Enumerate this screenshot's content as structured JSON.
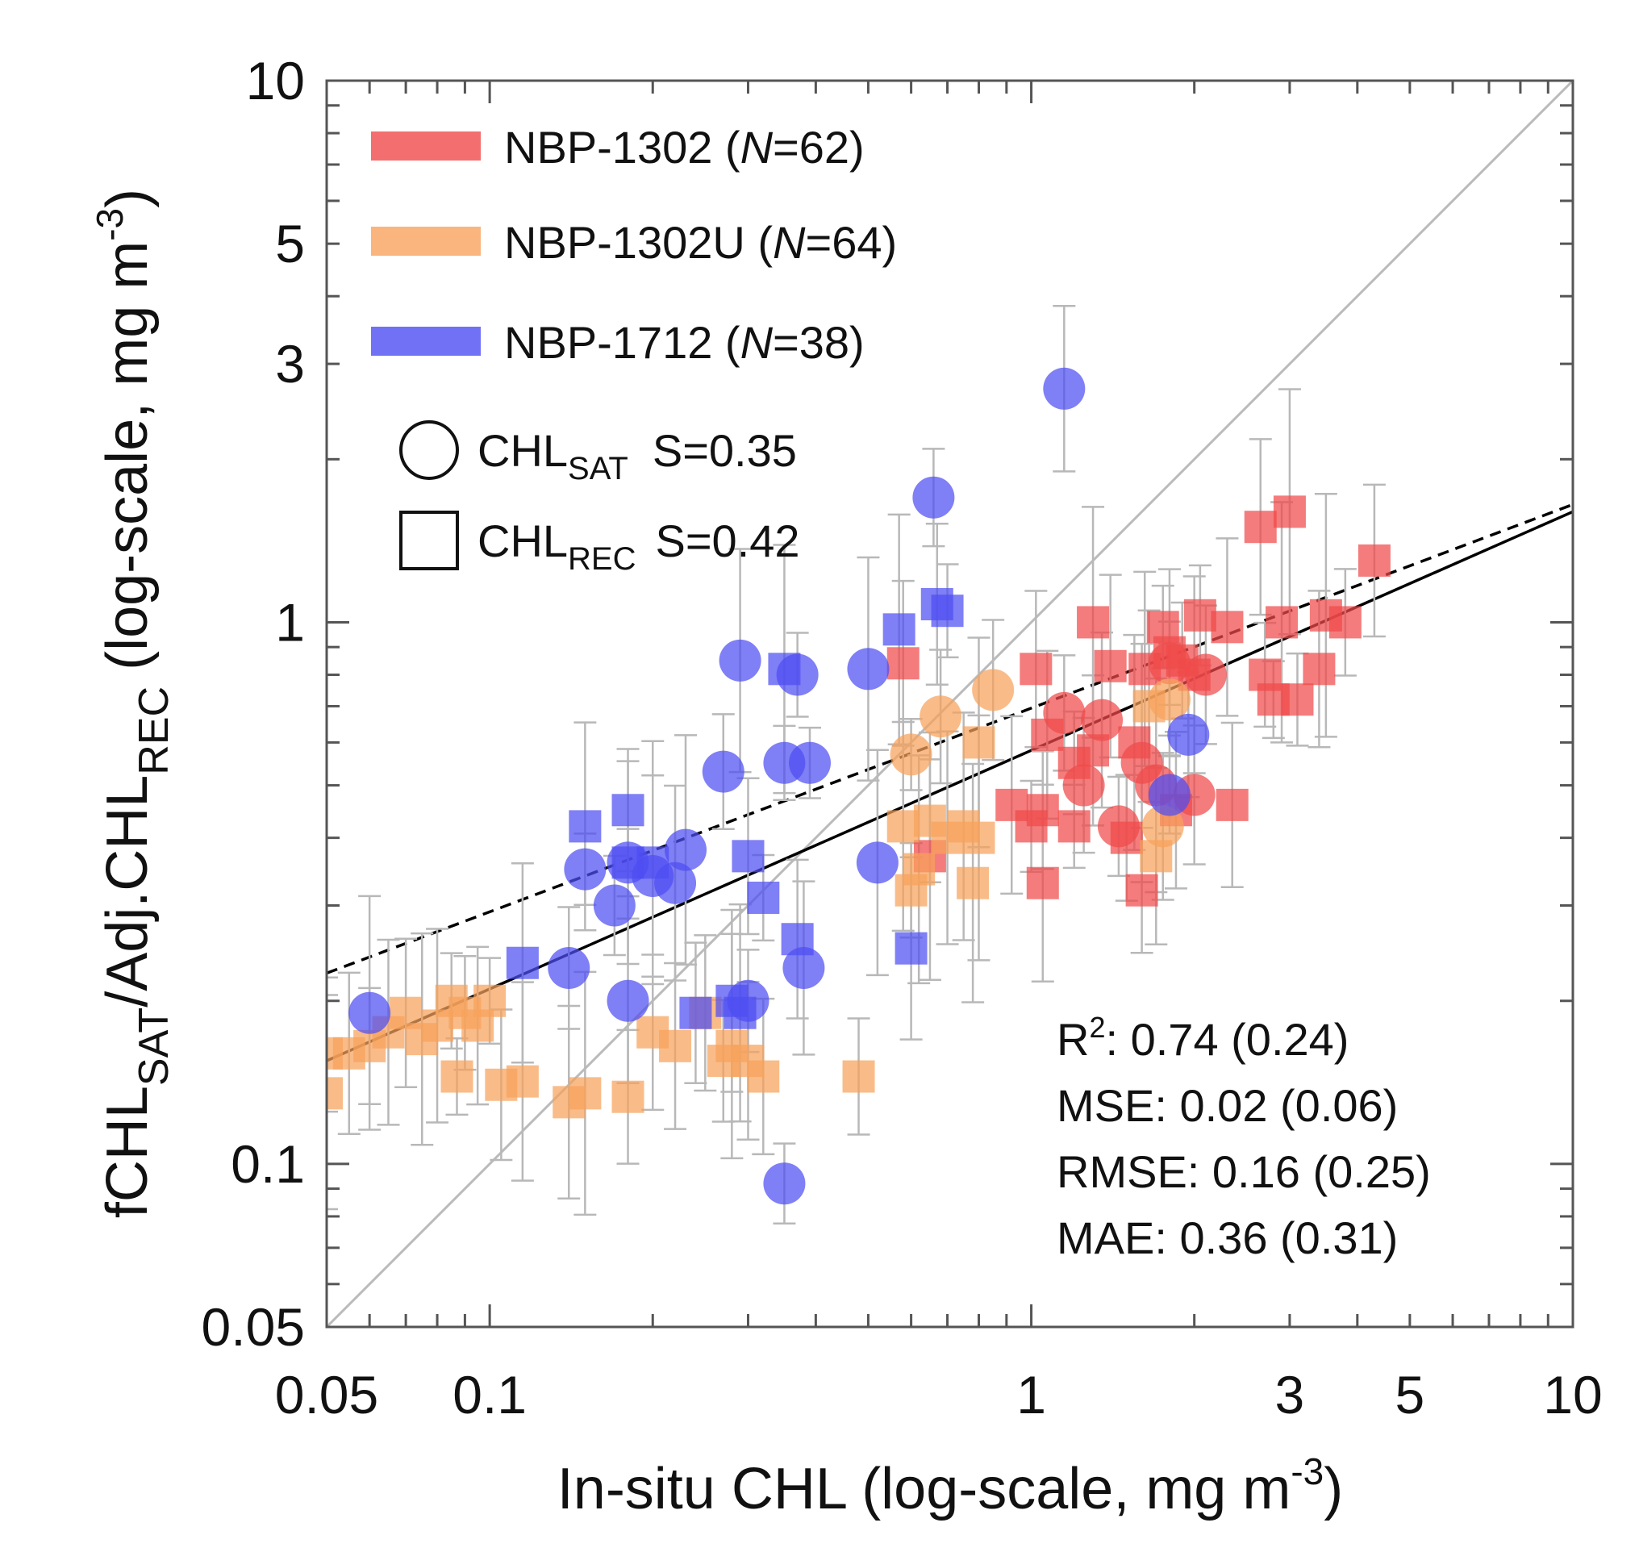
{
  "chart_data": {
    "type": "scatter",
    "xscale": "log",
    "yscale": "log",
    "xlim": [
      0.05,
      10
    ],
    "ylim": [
      0.05,
      10
    ],
    "xlabel": "In-situ CHL (log-scale, mg m",
    "xlabel_sup": "-3",
    "xlabel_end": ")",
    "ylabel_parts": {
      "f": "fCHL",
      "sat": "SAT",
      "mid": "/Adj.CHL",
      "rec": "REC",
      "tail": " (log-scale, mg m",
      "sup": "-3",
      "end": ")"
    },
    "xticks": [
      {
        "value": 0.05,
        "label": "0.05"
      },
      {
        "value": 0.1,
        "label": "0.1"
      },
      {
        "value": 1,
        "label": "1"
      },
      {
        "value": 3,
        "label": "3"
      },
      {
        "value": 5,
        "label": "5"
      },
      {
        "value": 10,
        "label": "10"
      }
    ],
    "yticks": [
      {
        "value": 0.05,
        "label": "0.05"
      },
      {
        "value": 0.1,
        "label": "0.1"
      },
      {
        "value": 1,
        "label": "1"
      },
      {
        "value": 3,
        "label": "3"
      },
      {
        "value": 5,
        "label": "5"
      },
      {
        "value": 10,
        "label": "10"
      }
    ],
    "legend": {
      "series": [
        {
          "label": "NBP-1302 (",
          "n_label": "N",
          "n_value": "=62)",
          "color": "#f04a4a"
        },
        {
          "label": "NBP-1302U (",
          "n_label": "N",
          "n_value": "=64)",
          "color": "#f7a25c"
        },
        {
          "label": "NBP-1712 (",
          "n_label": "N",
          "n_value": "=38)",
          "color": "#4d4df2"
        }
      ],
      "markers": [
        {
          "shape": "circle",
          "label": "CHL",
          "sub": "SAT",
          "stat": "S=0.35"
        },
        {
          "shape": "square",
          "label": "CHL",
          "sub": "REC",
          "stat": "S=0.42"
        }
      ]
    },
    "stats": {
      "r2_label": "R",
      "r2_sup": "2",
      "r2_value": ": 0.74 (0.24)",
      "mse": "MSE: 0.02 (0.06)",
      "rmse": "RMSE: 0.16 (0.25)",
      "mae": "MAE: 0.36 (0.31)"
    },
    "lines": {
      "one_to_one": {
        "x": [
          0.05,
          10
        ],
        "y": [
          0.05,
          10
        ],
        "color": "#bbbbbb"
      },
      "fit_solid": {
        "x": [
          0.05,
          10
        ],
        "y": [
          0.155,
          1.6
        ],
        "color": "#000000"
      },
      "fit_dashed": {
        "x": [
          0.05,
          10
        ],
        "y": [
          0.225,
          1.65
        ],
        "color": "#000000"
      }
    },
    "series": [
      {
        "name": "NBP-1302",
        "color": "#f04a4a",
        "circles": [
          {
            "x": 1.15,
            "y": 0.68
          },
          {
            "x": 1.35,
            "y": 0.66
          },
          {
            "x": 1.25,
            "y": 0.5
          },
          {
            "x": 1.45,
            "y": 0.42
          },
          {
            "x": 1.7,
            "y": 0.5
          },
          {
            "x": 2.0,
            "y": 0.48
          },
          {
            "x": 2.1,
            "y": 0.8
          },
          {
            "x": 1.8,
            "y": 0.84
          },
          {
            "x": 1.6,
            "y": 0.55
          }
        ],
        "squares": [
          {
            "x": 0.58,
            "y": 0.84
          },
          {
            "x": 0.92,
            "y": 0.46
          },
          {
            "x": 1.0,
            "y": 0.42
          },
          {
            "x": 1.05,
            "y": 0.45
          },
          {
            "x": 1.02,
            "y": 0.82
          },
          {
            "x": 1.07,
            "y": 0.62
          },
          {
            "x": 1.2,
            "y": 0.42
          },
          {
            "x": 1.3,
            "y": 1.0
          },
          {
            "x": 1.4,
            "y": 0.83
          },
          {
            "x": 1.3,
            "y": 0.58
          },
          {
            "x": 1.5,
            "y": 0.4
          },
          {
            "x": 1.55,
            "y": 0.6
          },
          {
            "x": 1.62,
            "y": 0.82
          },
          {
            "x": 1.75,
            "y": 0.98
          },
          {
            "x": 1.8,
            "y": 0.88
          },
          {
            "x": 1.9,
            "y": 0.85
          },
          {
            "x": 2.0,
            "y": 0.8
          },
          {
            "x": 2.05,
            "y": 1.03
          },
          {
            "x": 2.3,
            "y": 0.98
          },
          {
            "x": 2.35,
            "y": 0.46
          },
          {
            "x": 2.7,
            "y": 0.8
          },
          {
            "x": 2.8,
            "y": 0.72
          },
          {
            "x": 2.9,
            "y": 1.0
          },
          {
            "x": 3.0,
            "y": 1.6
          },
          {
            "x": 3.1,
            "y": 0.72
          },
          {
            "x": 3.4,
            "y": 0.82
          },
          {
            "x": 3.5,
            "y": 1.03
          },
          {
            "x": 3.8,
            "y": 1.0
          },
          {
            "x": 4.3,
            "y": 1.3
          },
          {
            "x": 2.65,
            "y": 1.5
          },
          {
            "x": 1.05,
            "y": 0.33
          },
          {
            "x": 1.6,
            "y": 0.32
          },
          {
            "x": 1.2,
            "y": 0.55
          },
          {
            "x": 0.65,
            "y": 0.37
          },
          {
            "x": 1.85,
            "y": 0.45
          }
        ]
      },
      {
        "name": "NBP-1302U",
        "color": "#f7a25c",
        "circles": [
          {
            "x": 0.6,
            "y": 0.57
          },
          {
            "x": 0.68,
            "y": 0.67
          },
          {
            "x": 0.85,
            "y": 0.75
          },
          {
            "x": 1.8,
            "y": 0.72
          },
          {
            "x": 1.75,
            "y": 0.42
          }
        ],
        "squares": [
          {
            "x": 0.05,
            "y": 0.16
          },
          {
            "x": 0.05,
            "y": 0.135
          },
          {
            "x": 0.055,
            "y": 0.16
          },
          {
            "x": 0.06,
            "y": 0.165
          },
          {
            "x": 0.065,
            "y": 0.175
          },
          {
            "x": 0.07,
            "y": 0.19
          },
          {
            "x": 0.075,
            "y": 0.17
          },
          {
            "x": 0.08,
            "y": 0.18
          },
          {
            "x": 0.085,
            "y": 0.2
          },
          {
            "x": 0.09,
            "y": 0.19
          },
          {
            "x": 0.095,
            "y": 0.18
          },
          {
            "x": 0.1,
            "y": 0.2
          },
          {
            "x": 0.087,
            "y": 0.145
          },
          {
            "x": 0.105,
            "y": 0.14
          },
          {
            "x": 0.115,
            "y": 0.142
          },
          {
            "x": 0.14,
            "y": 0.13
          },
          {
            "x": 0.15,
            "y": 0.135
          },
          {
            "x": 0.18,
            "y": 0.133
          },
          {
            "x": 0.2,
            "y": 0.175
          },
          {
            "x": 0.22,
            "y": 0.165
          },
          {
            "x": 0.25,
            "y": 0.19
          },
          {
            "x": 0.28,
            "y": 0.165
          },
          {
            "x": 0.3,
            "y": 0.155
          },
          {
            "x": 0.32,
            "y": 0.145
          },
          {
            "x": 0.27,
            "y": 0.155
          },
          {
            "x": 0.48,
            "y": 0.145
          },
          {
            "x": 0.58,
            "y": 0.42
          },
          {
            "x": 0.6,
            "y": 0.32
          },
          {
            "x": 0.65,
            "y": 0.43
          },
          {
            "x": 0.7,
            "y": 0.4
          },
          {
            "x": 0.75,
            "y": 0.42
          },
          {
            "x": 0.8,
            "y": 0.4
          },
          {
            "x": 0.78,
            "y": 0.33
          },
          {
            "x": 0.62,
            "y": 0.35
          },
          {
            "x": 0.8,
            "y": 0.6
          },
          {
            "x": 1.65,
            "y": 0.7
          },
          {
            "x": 1.7,
            "y": 0.37
          }
        ]
      },
      {
        "name": "NBP-1712",
        "color": "#4d4df2",
        "circles": [
          {
            "x": 0.06,
            "y": 0.19
          },
          {
            "x": 0.14,
            "y": 0.23
          },
          {
            "x": 0.15,
            "y": 0.35
          },
          {
            "x": 0.17,
            "y": 0.3
          },
          {
            "x": 0.18,
            "y": 0.36
          },
          {
            "x": 0.2,
            "y": 0.34
          },
          {
            "x": 0.22,
            "y": 0.33
          },
          {
            "x": 0.23,
            "y": 0.38
          },
          {
            "x": 0.27,
            "y": 0.53
          },
          {
            "x": 0.29,
            "y": 0.85
          },
          {
            "x": 0.3,
            "y": 0.2
          },
          {
            "x": 0.35,
            "y": 0.55
          },
          {
            "x": 0.37,
            "y": 0.8
          },
          {
            "x": 0.39,
            "y": 0.55
          },
          {
            "x": 0.38,
            "y": 0.23
          },
          {
            "x": 0.5,
            "y": 0.82
          },
          {
            "x": 0.52,
            "y": 0.36
          },
          {
            "x": 0.66,
            "y": 1.7
          },
          {
            "x": 1.15,
            "y": 2.7
          },
          {
            "x": 1.8,
            "y": 0.48
          },
          {
            "x": 1.95,
            "y": 0.62
          },
          {
            "x": 0.18,
            "y": 0.2
          },
          {
            "x": 0.35,
            "y": 0.092
          }
        ],
        "squares": [
          {
            "x": 0.115,
            "y": 0.235
          },
          {
            "x": 0.15,
            "y": 0.42
          },
          {
            "x": 0.18,
            "y": 0.45
          },
          {
            "x": 0.2,
            "y": 0.36
          },
          {
            "x": 0.18,
            "y": 0.36
          },
          {
            "x": 0.24,
            "y": 0.19
          },
          {
            "x": 0.28,
            "y": 0.2
          },
          {
            "x": 0.3,
            "y": 0.37
          },
          {
            "x": 0.32,
            "y": 0.31
          },
          {
            "x": 0.35,
            "y": 0.82
          },
          {
            "x": 0.37,
            "y": 0.26
          },
          {
            "x": 0.57,
            "y": 0.97
          },
          {
            "x": 0.6,
            "y": 0.25
          },
          {
            "x": 0.67,
            "y": 1.08
          },
          {
            "x": 0.7,
            "y": 1.05
          },
          {
            "x": 0.29,
            "y": 0.19
          }
        ]
      }
    ]
  }
}
